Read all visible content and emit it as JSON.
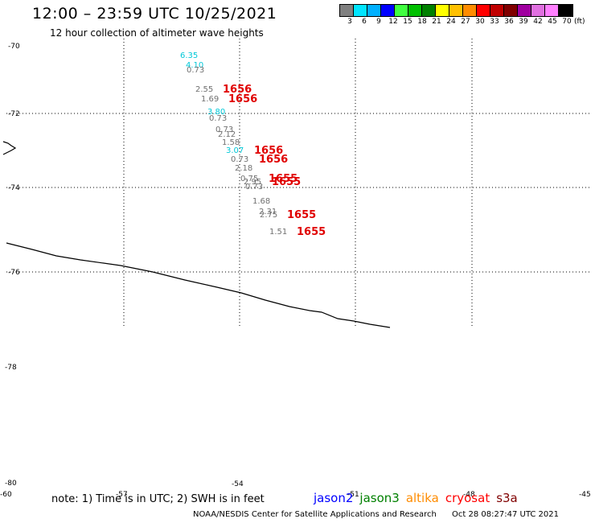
{
  "header": {
    "title": "12:00 – 23:59 UTC 10/25/2021",
    "subtitle": "12 hour collection of altimeter wave heights"
  },
  "legend": {
    "colors": [
      "#808080",
      "#00e5ff",
      "#00b0ff",
      "#0000ff",
      "#40ff40",
      "#00c000",
      "#008000",
      "#ffff00",
      "#ffc000",
      "#ff8c00",
      "#ff0000",
      "#c00000",
      "#800000",
      "#a000a0",
      "#e070e0",
      "#ff80ff",
      "#000000"
    ],
    "labels": [
      "3",
      "6",
      "9",
      "12",
      "15",
      "18",
      "21",
      "24",
      "27",
      "30",
      "33",
      "36",
      "39",
      "42",
      "45",
      "70"
    ],
    "unit": "(ft)"
  },
  "axes": {
    "lat_labels": [
      {
        "text": "-70"
      },
      {
        "text": "-72"
      },
      {
        "text": "-74"
      },
      {
        "text": "-76"
      },
      {
        "text": "-78"
      },
      {
        "text": "-80"
      }
    ],
    "lon_labels": [
      {
        "text": "-60"
      },
      {
        "text": "-57"
      },
      {
        "text": "-54"
      },
      {
        "text": "-51"
      },
      {
        "text": "-48"
      },
      {
        "text": "-45"
      }
    ]
  },
  "observations": [
    {
      "text": "6.35",
      "color": "#00c8d8"
    },
    {
      "text": "4.10",
      "color": "#00c8d8"
    },
    {
      "text": "0.73",
      "color": "#707070"
    },
    {
      "text": "2.55",
      "color": "#707070"
    },
    {
      "text": "1.69",
      "color": "#707070"
    },
    {
      "text": "3.80",
      "color": "#00c8d8"
    },
    {
      "text": "0.73",
      "color": "#707070"
    },
    {
      "text": "0.73",
      "color": "#707070"
    },
    {
      "text": "2.12",
      "color": "#707070"
    },
    {
      "text": "1.58",
      "color": "#707070"
    },
    {
      "text": "3.07",
      "color": "#00c8d8"
    },
    {
      "text": "0.73",
      "color": "#707070"
    },
    {
      "text": "2.18",
      "color": "#707070"
    },
    {
      "text": "0.75",
      "color": "#707070"
    },
    {
      "text": "2.95",
      "color": "#707070"
    },
    {
      "text": "0.73",
      "color": "#707070"
    },
    {
      "text": "1.68",
      "color": "#707070"
    },
    {
      "text": "2.31",
      "color": "#707070"
    },
    {
      "text": "2.75",
      "color": "#707070"
    },
    {
      "text": "1.51",
      "color": "#707070"
    }
  ],
  "time_labels": [
    {
      "text": "1656"
    },
    {
      "text": "1656"
    },
    {
      "text": "1656"
    },
    {
      "text": "1656"
    },
    {
      "text": "1655"
    },
    {
      "text": "1655"
    },
    {
      "text": "1655"
    },
    {
      "text": "1655"
    }
  ],
  "footer": {
    "note": "note: 1) Time is in UTC; 2) SWH is in feet",
    "satellites": [
      {
        "name": "jason2",
        "color": "#0000ff"
      },
      {
        "name": "jason3",
        "color": "#008000"
      },
      {
        "name": "altika",
        "color": "#ff8c00"
      },
      {
        "name": "cryosat",
        "color": "#ff0000"
      },
      {
        "name": "s3a",
        "color": "#800000"
      }
    ],
    "credit": "NOAA/NESDIS Center for Satellite Applications and Research",
    "timestamp": "Oct 28 08:27:47 UTC 2021"
  }
}
